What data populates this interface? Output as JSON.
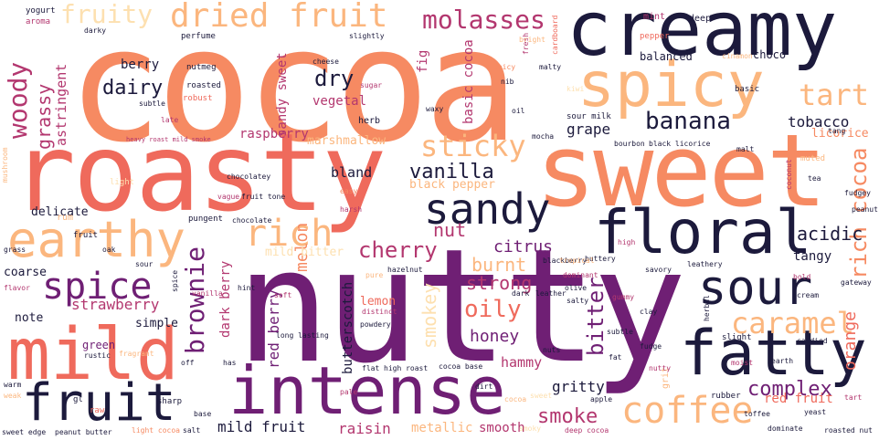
{
  "palette": {
    "deep_navy": "#1c1a3c",
    "purple": "#6f1f74",
    "magenta": "#b3376f",
    "coral": "#ef6a5c",
    "salmon": "#f68a62",
    "peach": "#fbb67e",
    "pale": "#fde0b0"
  },
  "words": {
    "cocoa": "cocoa",
    "creamy": "creamy",
    "roasty": "roasty",
    "sweet": "sweet",
    "nutty": "nutty",
    "spicy": "spicy",
    "earthy": "earthy",
    "floral": "floral",
    "mild": "mild",
    "intense": "intense",
    "fatty": "fatty",
    "fruit": "fruit",
    "sour": "sour",
    "sandy": "sandy",
    "fruity": "fruity",
    "dried_fruit": "dried fruit",
    "molasses": "molasses",
    "woody": "woody",
    "grassy": "grassy",
    "astringent": "astringent",
    "dairy": "dairy",
    "berry": "berry",
    "dry": "dry",
    "banana": "banana",
    "tart": "tart",
    "tobacco": "tobacco",
    "rich_cocoa": "rich cocoa",
    "sticky": "sticky",
    "vanilla": "vanilla",
    "rich": "rich",
    "spice": "spice",
    "brownie": "brownie",
    "caramel": "caramel",
    "coffee": "coffee",
    "complex": "complex",
    "smoke": "smoke",
    "cherry": "cherry",
    "citrus": "citrus",
    "nut": "nut",
    "burnt": "burnt",
    "strong": "strong",
    "oily": "oily",
    "honey": "honey",
    "bitter": "bitter",
    "acidic": "acidic",
    "orange": "orange",
    "strawberry": "strawberry",
    "raspberry": "raspberry",
    "grape": "grape",
    "melon": "melon",
    "licorice": "licorice",
    "gritty": "gritty",
    "smokey": "smokey",
    "hammy": "hammy",
    "butterscotch": "butterscotch",
    "mild_fruit": "mild fruit",
    "raisin": "raisin",
    "metallic": "metallic",
    "smooth": "smooth",
    "red_fruit": "red fruit",
    "tangy": "tangy",
    "delicate": "delicate",
    "coarse": "coarse",
    "note": "note",
    "simple": "simple",
    "green": "green",
    "vegetal": "vegetal",
    "marshmallow": "marshmallow",
    "bland": "bland",
    "black_pepper": "black pepper",
    "basic_cocoa": "basic cocoa",
    "sandy_sweet": "sandy sweet",
    "dark_berry": "dark berry",
    "red_berry": "red berry",
    "lemon": "lemon",
    "mild_bitter": "mild bitter",
    "fig": "fig",
    "herb": "herb",
    "balanced": "balanced",
    "choco": "choco",
    "basic": "basic",
    "mint": "mint",
    "deep": "deep",
    "pepper": "pepper",
    "cinamon": "cinamon",
    "perfume": "perfume",
    "yogurt": "yogurt",
    "aroma": "aroma",
    "darky": "darky",
    "nutmeg": "nutmeg",
    "roasted": "roasted",
    "robust": "robust",
    "subtle": "subtle",
    "late": "late",
    "heavy_roast_mild_smoke": "heavy roast mild smoke",
    "slightly": "slightly",
    "cheese": "cheese",
    "rum": "rum",
    "pungent": "pungent",
    "chocolatey": "chocolatey",
    "chocolate": "chocolate",
    "sour_milk": "sour milk",
    "mocha": "mocha",
    "bourbon": "bourbon",
    "black_licorice": "black licorice",
    "malt": "malt",
    "muted": "muted",
    "tang": "tang",
    "fudgey": "fudgey",
    "peanut": "peanut",
    "blackberry": "blackberry",
    "high": "high",
    "buttery": "buttery",
    "leathery": "leathery",
    "savory": "savory",
    "slight": "slight",
    "fudge": "fudge",
    "hazelnut": "hazelnut",
    "dark": "dark",
    "leather": "leather",
    "olive": "olive",
    "salty": "salty",
    "gummy": "gummy",
    "candied": "candied",
    "earth": "earth",
    "rubber": "rubber",
    "apple": "apple",
    "cocoa_base": "cocoa base",
    "flat": "flat",
    "high_roast": "high roast",
    "powdery": "powdery",
    "deep_cocoa": "deep cocoa",
    "dominate": "dominate",
    "roasted_nut": "roasted nut",
    "light_cocoa": "light cocoa",
    "sweet_edge": "sweet edge",
    "peanut_butter": "peanut butter",
    "salt": "salt",
    "flavor": "flavor",
    "rustic": "rustic",
    "fragrant": "fragrant",
    "pure": "pure",
    "distinct": "distinct",
    "pale": "pale",
    "harsh": "harsh",
    "easy": "easy",
    "long_lasting": "long lasting",
    "tropical": "tropical",
    "dominant": "dominant",
    "nib": "nib",
    "oil": "oil",
    "light": "light",
    "fruit_sm": "fruit",
    "raw": "raw",
    "sharp": "sharp",
    "hint": "hint",
    "soft": "soft",
    "grit": "grit",
    "toffee": "toffee",
    "nuts": "nuts",
    "fat": "fat",
    "base": "base",
    "has": "has",
    "off": "off",
    "cream": "cream",
    "bold": "bold",
    "gateway": "gateway",
    "cardboard": "cardboard",
    "kiwi": "kiwi",
    "malty": "malty",
    "fresh": "fresh",
    "waxy": "waxy",
    "coconut": "coconut",
    "tea": "tea",
    "spicy_sm": "spicy",
    "bright": "bright",
    "sugar": "sugar",
    "fruit_tone": "fruit tone",
    "vague": "vague",
    "herbal": "herbal",
    "moist": "moist",
    "subtle_sm": "subtle",
    "clay": "clay",
    "nutty_sm": "nutty",
    "dirt": "dirt",
    "cocoa_sm": "cocoa",
    "sweet_sm": "sweet",
    "smoky": "smoky",
    "yeast": "yeast",
    "tart_sm": "tart",
    "warm": "warm",
    "weak": "weak",
    "mushroom": "mushroom",
    "grass": "grass",
    "spice_sm": "spice",
    "vanilla_sm": "vanilla",
    "sour_sm": "sour",
    "oak": "oak",
    "gl": "gl"
  }
}
